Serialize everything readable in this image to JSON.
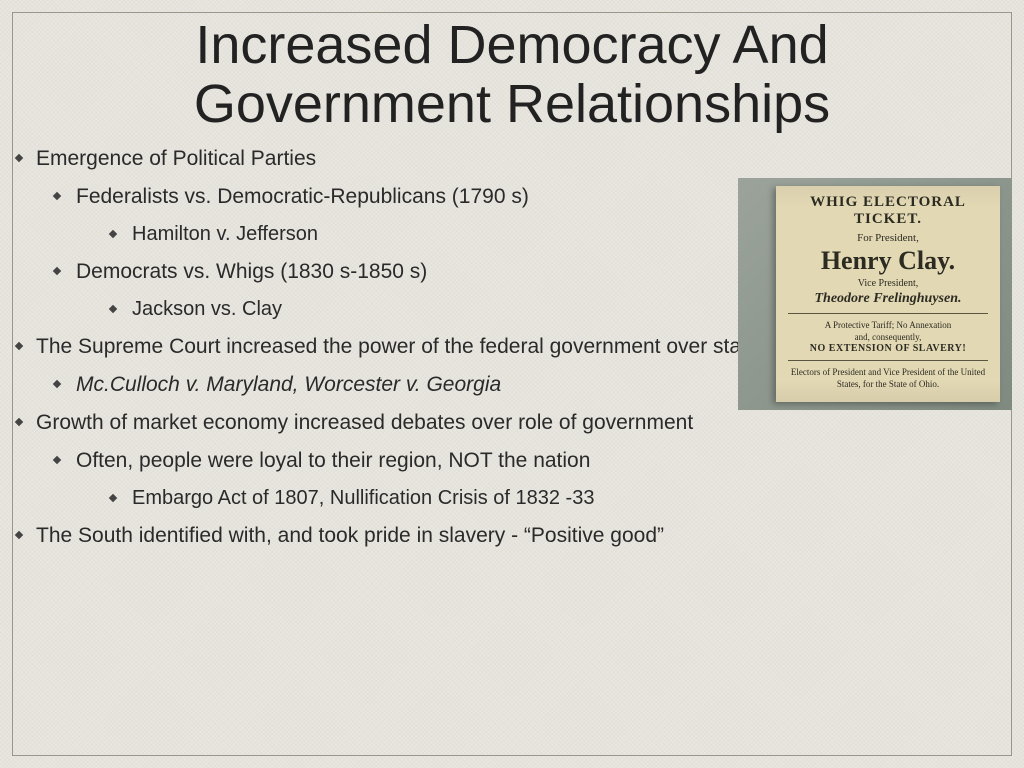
{
  "title_line1": "Increased Democracy And",
  "title_line2": "Government Relationships",
  "bullets": {
    "p1": "Emergence of Political Parties",
    "p1a": "Federalists vs. Democratic-Republicans (1790 s)",
    "p1a1": "Hamilton v. Jefferson",
    "p1b": "Democrats vs. Whigs (1830 s-1850 s)",
    "p1b1": "Jackson vs. Clay",
    "p2": "The Supreme Court increased the power of the federal government over states",
    "p2a": "Mc.Culloch v. Maryland, Worcester v. Georgia",
    "p3": "Growth of market economy increased debates over role of government",
    "p3a": "Often, people were loyal to their region, NOT the nation",
    "p3a1": "Embargo Act of 1807, Nullification Crisis of 1832 -33",
    "p4": "The South identified with, and took pride in slavery - “Positive good”"
  },
  "ticket": {
    "head": "WHIG ELECTORAL TICKET.",
    "for_pres": "For President,",
    "name1": "Henry Clay.",
    "for_vp": "Vice President,",
    "name2": "Theodore Frelinghuysen.",
    "line1": "A Protective Tariff; No Annexation",
    "line2": "and, consequently,",
    "line3": "NO EXTENSION OF SLAVERY!",
    "foot": "Electors of President and Vice President of the United States, for the State of Ohio."
  },
  "style": {
    "background_color": "#e8e6df",
    "text_color": "#2a2a2a",
    "border_color": "#9a968c",
    "title_fontsize": 54,
    "body_fontsize": 21,
    "ticket_bg": "#e3d8b4",
    "ticket_photo_bg": "#7f8a80"
  }
}
